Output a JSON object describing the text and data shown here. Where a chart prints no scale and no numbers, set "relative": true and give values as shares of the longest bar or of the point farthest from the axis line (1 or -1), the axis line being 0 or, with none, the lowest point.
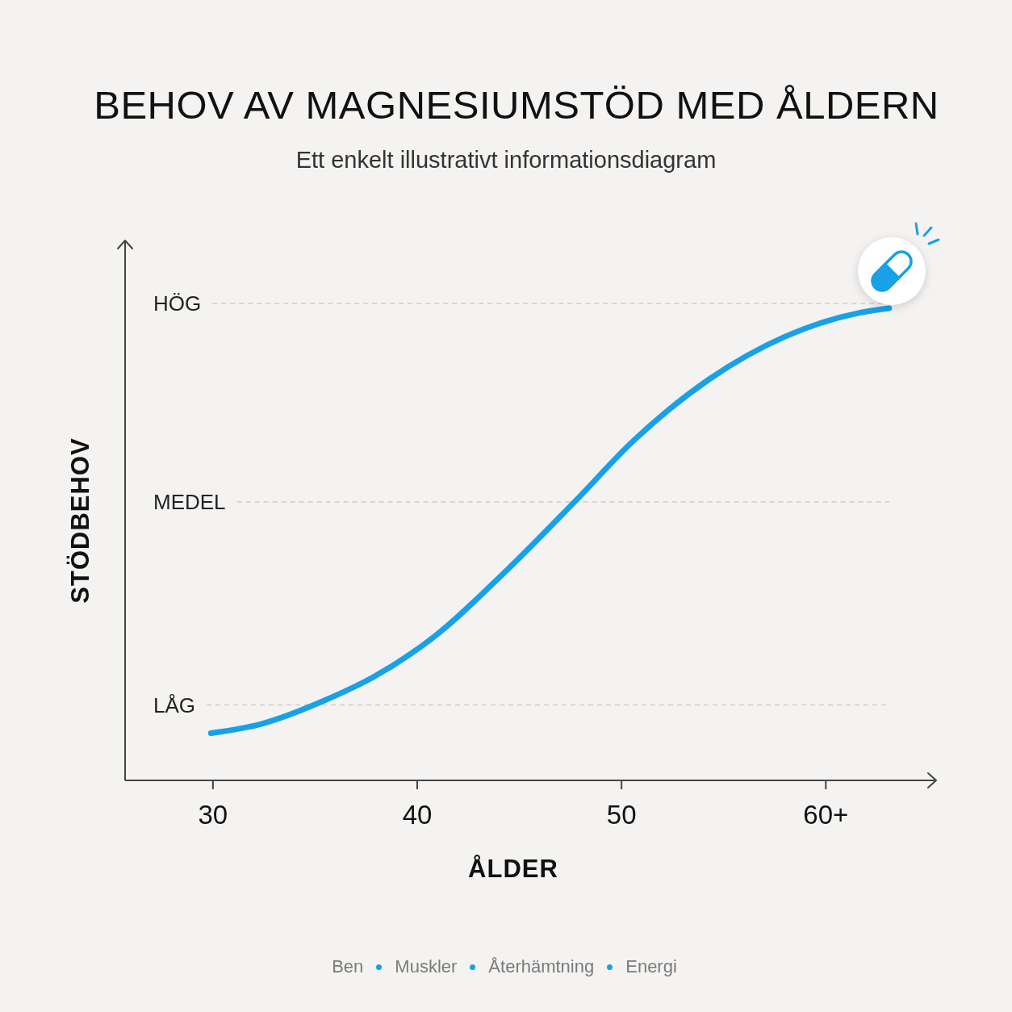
{
  "chart_data": {
    "type": "line",
    "title": "BEHOV AV MAGNESIUMSTÖD MED ÅLDERN",
    "subtitle": "Ett enkelt illustrativt informationsdiagram",
    "xlabel": "ÅLDER",
    "ylabel": "STÖDBEHOV",
    "annotations": [
      "Ben",
      "Muskler",
      "Återhämtning",
      "Energi"
    ],
    "relative": true,
    "x": [
      29.9,
      32.4,
      35.5,
      37.9,
      40.7,
      44.5,
      47.7,
      50.6,
      54.3,
      58.0,
      61.6,
      63.1
    ],
    "series": [
      {
        "color": "#18a1e6",
        "values": [
          0.1,
          0.12,
          0.17,
          0.22,
          0.3,
          0.45,
          0.59,
          0.72,
          0.85,
          0.94,
          0.99,
          1.0
        ]
      }
    ],
    "xlim": [
      25.7,
      65.4
    ],
    "xticks": [
      30,
      40,
      50,
      {
        "value": 60,
        "label": "60+"
      }
    ],
    "ref_lines": [
      {
        "axis": "y",
        "value": 0.16,
        "label": "LÅG",
        "color": "#d2d2d2",
        "line_style": "dashed"
      },
      {
        "axis": "y",
        "value": 0.59,
        "label": "MEDEL",
        "color": "#d2d2d2",
        "line_style": "dashed"
      },
      {
        "axis": "y",
        "value": 1.01,
        "label": "HÖG",
        "color": "#d2d2d2",
        "line_style": "dashed"
      }
    ]
  }
}
